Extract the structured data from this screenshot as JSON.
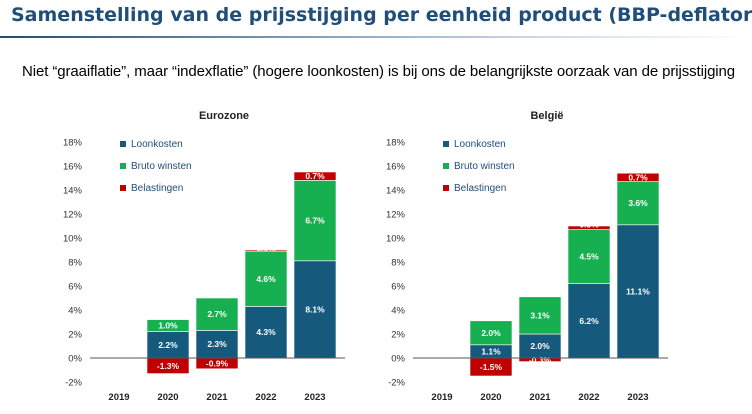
{
  "page": {
    "title": "Samenstelling van de prijsstijging per eenheid product (BBP-deflator)",
    "subtitle": "Niet “graaiflatie”, maar “indexflatie” (hogere loonkosten) is bij ons de belangrijkste oorzaak van de prijsstijging"
  },
  "colors": {
    "Loonkosten": "#155a7d",
    "Bruto winsten": "#17b050",
    "Belastingen": "#c00000"
  },
  "chart_data": [
    {
      "type": "bar",
      "stacked": true,
      "title": "Eurozone",
      "categories": [
        "2019",
        "2020",
        "2021",
        "2022",
        "2023"
      ],
      "ylim": [
        -2,
        18
      ],
      "yticks": [
        "-2%",
        "0%",
        "2%",
        "4%",
        "6%",
        "8%",
        "10%",
        "12%",
        "14%",
        "16%",
        "18%"
      ],
      "legend_position": "top-left",
      "series": [
        {
          "name": "Loonkosten",
          "values": [
            null,
            2.2,
            2.3,
            4.3,
            8.1
          ],
          "labels": [
            "",
            "2.2%",
            "2.3%",
            "4.3%",
            "8.1%"
          ]
        },
        {
          "name": "Bruto winsten",
          "values": [
            null,
            1.0,
            2.7,
            4.6,
            6.7
          ],
          "labels": [
            "",
            "1.0%",
            "2.7%",
            "4.6%",
            "6.7%"
          ]
        },
        {
          "name": "Belastingen",
          "values": [
            null,
            -1.3,
            -0.9,
            0.1,
            0.7
          ],
          "labels": [
            "",
            "-1.3%",
            "-0.9%",
            "0.1%",
            "0.7%"
          ]
        }
      ]
    },
    {
      "type": "bar",
      "stacked": true,
      "title": "België",
      "categories": [
        "2019",
        "2020",
        "2021",
        "2022",
        "2023"
      ],
      "ylim": [
        -2,
        18
      ],
      "yticks": [
        "-2%",
        "0%",
        "2%",
        "4%",
        "6%",
        "8%",
        "10%",
        "12%",
        "14%",
        "16%",
        "18%"
      ],
      "legend_position": "top-left",
      "series": [
        {
          "name": "Loonkosten",
          "values": [
            null,
            1.1,
            2.0,
            6.2,
            11.1
          ],
          "labels": [
            "",
            "1.1%",
            "2.0%",
            "6.2%",
            "11.1%"
          ]
        },
        {
          "name": "Bruto winsten",
          "values": [
            null,
            2.0,
            3.1,
            4.5,
            3.6
          ],
          "labels": [
            "",
            "2.0%",
            "3.1%",
            "4.5%",
            "3.6%"
          ]
        },
        {
          "name": "Belastingen",
          "values": [
            null,
            -1.5,
            -0.3,
            0.3,
            0.7
          ],
          "labels": [
            "",
            "-1.5%",
            "-0.3%",
            "0.3%",
            "0.7%"
          ]
        }
      ]
    }
  ]
}
